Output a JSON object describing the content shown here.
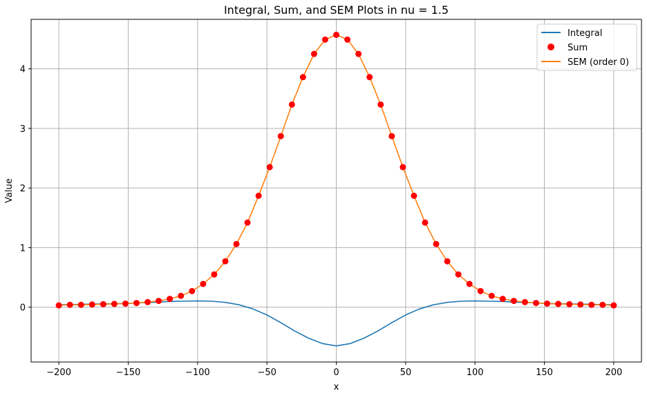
{
  "chart_data": {
    "type": "line",
    "title": "Integral, Sum, and SEM Plots in nu = 1.5",
    "xlabel": "x",
    "ylabel": "Value",
    "xlim": [
      -220,
      220
    ],
    "ylim": [
      -0.92,
      4.83
    ],
    "x_ticks": [
      -200,
      -150,
      -100,
      -50,
      0,
      50,
      100,
      150,
      200
    ],
    "x_tick_labels": [
      "−200",
      "−150",
      "−100",
      "−50",
      "0",
      "50",
      "100",
      "150",
      "200"
    ],
    "y_ticks": [
      0,
      1,
      2,
      3,
      4
    ],
    "y_tick_labels": [
      "0",
      "1",
      "2",
      "3",
      "4"
    ],
    "grid": true,
    "legend_position": "top-right",
    "series": [
      {
        "name": "Integral",
        "kind": "line",
        "color": "#1f77b4",
        "x": [
          -200,
          -190,
          -180,
          -170,
          -160,
          -150,
          -140,
          -130,
          -120,
          -110,
          -100,
          -90,
          -80,
          -70,
          -60,
          -50,
          -40,
          -30,
          -20,
          -10,
          0,
          10,
          20,
          30,
          40,
          50,
          60,
          70,
          80,
          90,
          100,
          110,
          120,
          130,
          140,
          150,
          160,
          170,
          180,
          190,
          200
        ],
        "y": [
          0.04,
          0.045,
          0.05,
          0.055,
          0.06,
          0.065,
          0.075,
          0.085,
          0.095,
          0.1,
          0.105,
          0.1,
          0.08,
          0.04,
          -0.03,
          -0.13,
          -0.26,
          -0.4,
          -0.52,
          -0.61,
          -0.65,
          -0.61,
          -0.52,
          -0.4,
          -0.26,
          -0.13,
          -0.03,
          0.04,
          0.08,
          0.1,
          0.105,
          0.1,
          0.095,
          0.085,
          0.075,
          0.065,
          0.06,
          0.055,
          0.05,
          0.045,
          0.04
        ]
      },
      {
        "name": "Sum",
        "kind": "scatter",
        "color": "#ff0000",
        "x": [
          -200,
          -192,
          -184,
          -176,
          -168,
          -160,
          -152,
          -144,
          -136,
          -128,
          -120,
          -112,
          -104,
          -96,
          -88,
          -80,
          -72,
          -64,
          -56,
          -48,
          -40,
          -32,
          -24,
          -16,
          -8,
          0,
          8,
          16,
          24,
          32,
          40,
          48,
          56,
          64,
          72,
          80,
          88,
          96,
          104,
          112,
          120,
          128,
          136,
          144,
          152,
          160,
          168,
          176,
          184,
          192,
          200
        ],
        "y": [
          0.03,
          0.04,
          0.04,
          0.045,
          0.05,
          0.055,
          0.06,
          0.07,
          0.085,
          0.105,
          0.14,
          0.19,
          0.27,
          0.39,
          0.55,
          0.77,
          1.06,
          1.42,
          1.87,
          2.35,
          2.87,
          3.4,
          3.86,
          4.25,
          4.49,
          4.57,
          4.49,
          4.25,
          3.86,
          3.4,
          2.87,
          2.35,
          1.87,
          1.42,
          1.06,
          0.77,
          0.55,
          0.39,
          0.27,
          0.19,
          0.14,
          0.105,
          0.085,
          0.07,
          0.06,
          0.055,
          0.05,
          0.045,
          0.04,
          0.04,
          0.03
        ]
      },
      {
        "name": "SEM (order 0)",
        "kind": "line",
        "color": "#ff7f0e",
        "x": [
          -200,
          -192,
          -184,
          -176,
          -168,
          -160,
          -152,
          -144,
          -136,
          -128,
          -120,
          -112,
          -104,
          -96,
          -88,
          -80,
          -72,
          -64,
          -56,
          -48,
          -40,
          -32,
          -24,
          -16,
          -8,
          0,
          8,
          16,
          24,
          32,
          40,
          48,
          56,
          64,
          72,
          80,
          88,
          96,
          104,
          112,
          120,
          128,
          136,
          144,
          152,
          160,
          168,
          176,
          184,
          192,
          200
        ],
        "y": [
          0.03,
          0.04,
          0.04,
          0.045,
          0.05,
          0.055,
          0.06,
          0.07,
          0.085,
          0.105,
          0.14,
          0.19,
          0.27,
          0.39,
          0.55,
          0.77,
          1.06,
          1.42,
          1.87,
          2.35,
          2.87,
          3.4,
          3.86,
          4.25,
          4.49,
          4.57,
          4.49,
          4.25,
          3.86,
          3.4,
          2.87,
          2.35,
          1.87,
          1.42,
          1.06,
          0.77,
          0.55,
          0.39,
          0.27,
          0.19,
          0.14,
          0.105,
          0.085,
          0.07,
          0.06,
          0.055,
          0.05,
          0.045,
          0.04,
          0.04,
          0.03
        ]
      }
    ]
  }
}
